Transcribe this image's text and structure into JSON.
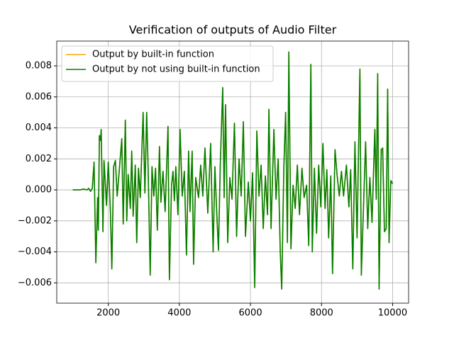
{
  "chart_data": {
    "type": "line",
    "title": "Verification of outputs of Audio Filter",
    "x": [
      1000,
      1100,
      1200,
      1300,
      1400,
      1450,
      1500,
      1550,
      1600,
      1650,
      1700,
      1720,
      1750,
      1780,
      1800,
      1850,
      1880,
      1950,
      2000,
      2060,
      2100,
      2150,
      2200,
      2250,
      2300,
      2380,
      2420,
      2480,
      2520,
      2560,
      2620,
      2660,
      2700,
      2760,
      2800,
      2850,
      2900,
      2980,
      3030,
      3080,
      3120,
      3180,
      3230,
      3280,
      3330,
      3380,
      3440,
      3480,
      3540,
      3600,
      3680,
      3720,
      3780,
      3820,
      3860,
      3900,
      3960,
      4020,
      4080,
      4140,
      4200,
      4260,
      4300,
      4360,
      4400,
      4460,
      4540,
      4600,
      4660,
      4720,
      4800,
      4880,
      4950,
      5000,
      5050,
      5100,
      5150,
      5220,
      5260,
      5300,
      5360,
      5420,
      5480,
      5550,
      5610,
      5680,
      5740,
      5800,
      5860,
      5940,
      6000,
      6060,
      6120,
      6180,
      6240,
      6300,
      6360,
      6420,
      6480,
      6520,
      6580,
      6660,
      6720,
      6780,
      6840,
      6880,
      6940,
      6990,
      7040,
      7080,
      7140,
      7200,
      7260,
      7320,
      7380,
      7450,
      7510,
      7580,
      7640,
      7700,
      7740,
      7800,
      7860,
      7920,
      7980,
      8040,
      8100,
      8150,
      8200,
      8260,
      8310,
      8380,
      8440,
      8500,
      8560,
      8620,
      8700,
      8770,
      8820,
      8880,
      8940,
      9000,
      9080,
      9120,
      9180,
      9240,
      9300,
      9360,
      9420,
      9500,
      9540,
      9580,
      9620,
      9680,
      9720,
      9770,
      9820,
      9860,
      9900,
      9950,
      10000
    ],
    "series": [
      {
        "name": "Output by built-in function",
        "color": "#ffa500",
        "values": [
          0,
          0,
          0,
          5e-05,
          0,
          0.0001,
          -0.0001,
          0.0001,
          0.0018,
          -0.0047,
          -0.0005,
          -0.0026,
          0.0035,
          0.0032,
          0.0039,
          -0.0027,
          0.0019,
          -0.001,
          0.0018,
          -0.0014,
          -0.0051,
          0.0015,
          0.0019,
          -0.0004,
          0.001,
          0.0033,
          -0.0022,
          0.0045,
          -0.002,
          0.001,
          -0.0012,
          0.0025,
          -0.0017,
          0.0016,
          -0.0034,
          0.0014,
          -0.0005,
          0.005,
          -0.0002,
          0.005,
          0.0015,
          -0.0055,
          0.0015,
          -0.0004,
          0.0014,
          -0.0026,
          0.0028,
          -0.0008,
          0.0012,
          -0.0014,
          0.0041,
          -0.0058,
          0.0003,
          0.0012,
          -0.0007,
          0.0015,
          -0.0016,
          0.0039,
          -0.0004,
          0.0012,
          -0.0042,
          0.0025,
          -0.0014,
          0.0025,
          -0.0048,
          0.0008,
          -0.0005,
          0.0016,
          -0.0004,
          0.0027,
          -0.0015,
          0.003,
          -0.004,
          0.0015,
          -0.0014,
          -0.0039,
          0.0015,
          0.0066,
          -0.0005,
          0.0055,
          -0.0034,
          0.0008,
          -0.0006,
          0.0043,
          -0.003,
          0.002,
          -0.0004,
          0.0044,
          -0.003,
          0.0005,
          -0.002,
          0.0011,
          -0.0063,
          0.0038,
          -0.0004,
          0.0016,
          -0.0025,
          0.0009,
          -0.0016,
          0.0052,
          -0.0025,
          0.0039,
          -0.0006,
          0.002,
          -0.0041,
          -0.0064,
          0.0015,
          0.005,
          -0.0034,
          0.0089,
          -0.0038,
          0.0003,
          -0.0012,
          0.0016,
          -0.0016,
          0.0014,
          -0.0005,
          0.0003,
          -0.0036,
          0.0081,
          -0.004,
          0.0014,
          -0.0028,
          0.0016,
          -0.0011,
          0.003,
          -0.0012,
          0.0013,
          -0.0031,
          0.0009,
          -0.0054,
          0.0026,
          0.0009,
          -0.0004,
          0.0012,
          -0.0004,
          0.0016,
          -0.0011,
          0.0013,
          -0.0051,
          0.0031,
          -0.0031,
          0.0078,
          -0.0055,
          -0.0012,
          0.0031,
          -0.0025,
          0.0008,
          -0.0021,
          0.0039,
          -0.0006,
          0.0075,
          -0.0064,
          0.0026,
          0.0027,
          -0.0027,
          -0.0025,
          0.0065,
          -0.0034,
          0.0006,
          0.0004
        ]
      },
      {
        "name": "Output by not using built-in function",
        "color": "#008000",
        "values": [
          0,
          0,
          0,
          5e-05,
          0,
          0.0001,
          -0.0001,
          0.0001,
          0.0018,
          -0.0047,
          -0.0005,
          -0.0026,
          0.0035,
          0.0032,
          0.0039,
          -0.0027,
          0.0019,
          -0.001,
          0.0018,
          -0.0014,
          -0.0051,
          0.0015,
          0.0019,
          -0.0004,
          0.001,
          0.0033,
          -0.0022,
          0.0045,
          -0.002,
          0.001,
          -0.0012,
          0.0025,
          -0.0017,
          0.0016,
          -0.0034,
          0.0014,
          -0.0005,
          0.005,
          -0.0002,
          0.005,
          0.0015,
          -0.0055,
          0.0015,
          -0.0004,
          0.0014,
          -0.0026,
          0.0028,
          -0.0008,
          0.0012,
          -0.0014,
          0.0041,
          -0.0058,
          0.0003,
          0.0012,
          -0.0007,
          0.0015,
          -0.0016,
          0.0039,
          -0.0004,
          0.0012,
          -0.0042,
          0.0025,
          -0.0014,
          0.0025,
          -0.0048,
          0.0008,
          -0.0005,
          0.0016,
          -0.0004,
          0.0027,
          -0.0015,
          0.003,
          -0.004,
          0.0015,
          -0.0014,
          -0.0039,
          0.0015,
          0.0066,
          -0.0005,
          0.0055,
          -0.0034,
          0.0008,
          -0.0006,
          0.0043,
          -0.003,
          0.002,
          -0.0004,
          0.0044,
          -0.003,
          0.0005,
          -0.002,
          0.0011,
          -0.0063,
          0.0038,
          -0.0004,
          0.0016,
          -0.0025,
          0.0009,
          -0.0016,
          0.0052,
          -0.0025,
          0.0039,
          -0.0006,
          0.002,
          -0.0041,
          -0.0064,
          0.0015,
          0.005,
          -0.0034,
          0.0089,
          -0.0038,
          0.0003,
          -0.0012,
          0.0016,
          -0.0016,
          0.0014,
          -0.0005,
          0.0003,
          -0.0036,
          0.0081,
          -0.004,
          0.0014,
          -0.0028,
          0.0016,
          -0.0011,
          0.003,
          -0.0012,
          0.0013,
          -0.0031,
          0.0009,
          -0.0054,
          0.0026,
          0.0009,
          -0.0004,
          0.0012,
          -0.0004,
          0.0016,
          -0.0011,
          0.0013,
          -0.0051,
          0.0031,
          -0.0031,
          0.0078,
          -0.0055,
          -0.0012,
          0.0031,
          -0.0025,
          0.0008,
          -0.0021,
          0.0039,
          -0.0006,
          0.0075,
          -0.0064,
          0.0026,
          0.0027,
          -0.0027,
          -0.0025,
          0.0065,
          -0.0034,
          0.0006,
          0.0004
        ]
      }
    ],
    "xlim": [
      550,
      10450
    ],
    "xticks": [
      2000,
      4000,
      6000,
      8000,
      10000
    ],
    "ylim": [
      -0.00731,
      0.0096
    ],
    "yticks": [
      {
        "value": -0.006,
        "label": "−0.006"
      },
      {
        "value": -0.004,
        "label": "−0.004"
      },
      {
        "value": -0.002,
        "label": "−0.002"
      },
      {
        "value": 0,
        "label": "0.000"
      },
      {
        "value": 0.002,
        "label": "0.002"
      },
      {
        "value": 0.004,
        "label": "0.004"
      },
      {
        "value": 0.006,
        "label": "0.006"
      },
      {
        "value": 0.008,
        "label": "0.008"
      }
    ],
    "grid": true,
    "legend": "upper left"
  }
}
